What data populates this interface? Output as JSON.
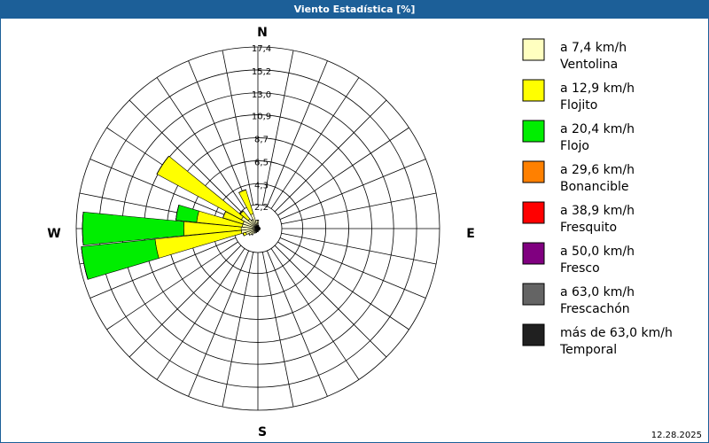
{
  "chart_data": {
    "type": "windrose",
    "title": "Viento Estadística [%]",
    "date": "12.28.2025",
    "compass_labels": [
      "N",
      "E",
      "S",
      "W"
    ],
    "x": [
      0,
      11.25,
      22.5,
      33.75,
      45,
      56.25,
      67.5,
      78.75,
      90,
      101.25,
      112.5,
      123.75,
      135,
      146.25,
      157.5,
      168.75,
      180,
      191.25,
      202.5,
      213.75,
      225,
      236.25,
      247.5,
      258.75,
      270,
      281.25,
      292.5,
      303.75,
      315,
      326.25,
      337.5,
      348.75
    ],
    "rlim": [
      0,
      17.4
    ],
    "rticks": [
      {
        "value": 2.2,
        "label": "2,2"
      },
      {
        "value": 4.3,
        "label": "4,3"
      },
      {
        "value": 6.5,
        "label": "6,5"
      },
      {
        "value": 8.7,
        "label": "8,7"
      },
      {
        "value": 10.9,
        "label": "10,9"
      },
      {
        "value": 13.0,
        "label": "13,0"
      },
      {
        "value": 15.2,
        "label": "15,2"
      },
      {
        "value": 17.4,
        "label": "17,4"
      }
    ],
    "series": [
      {
        "name": "a 7,4 km/h",
        "description": "Ventolina",
        "color": "#ffffc0",
        "values": [
          0.8,
          0.3,
          0.2,
          0.2,
          0.2,
          0.2,
          0.2,
          0.2,
          0.2,
          0.2,
          0.2,
          0.2,
          0.2,
          0.2,
          0.2,
          0.2,
          0.3,
          0.3,
          0.4,
          0.5,
          0.8,
          1.0,
          1.2,
          1.6,
          1.6,
          1.5,
          1.5,
          1.8,
          1.2,
          1.0,
          1.5,
          0.8
        ]
      },
      {
        "name": "a 12,9 km/h",
        "description": "Flojito",
        "color": "#ffff00",
        "values": [
          0,
          0,
          0,
          0,
          0,
          0,
          0,
          0,
          0,
          0,
          0,
          0,
          0,
          0,
          0,
          0,
          0,
          0,
          0,
          0,
          0,
          0,
          0.3,
          8.3,
          5.5,
          4.4,
          2.0,
          9.2,
          1.0,
          0,
          2.4,
          0
        ]
      },
      {
        "name": "a 20,4 km/h",
        "description": "Flojo",
        "color": "#00ee00",
        "values": [
          0,
          0,
          0,
          0,
          0,
          0,
          0,
          0,
          0,
          0,
          0,
          0,
          0,
          0,
          0,
          0,
          0,
          0,
          0,
          0,
          0,
          0,
          0,
          7.1,
          9.7,
          2.0,
          0,
          0,
          0,
          0,
          0,
          0
        ]
      },
      {
        "name": "a 29,6 km/h",
        "description": "Bonancible",
        "color": "#ff8000",
        "values": [
          0,
          0,
          0,
          0,
          0,
          0,
          0,
          0,
          0,
          0,
          0,
          0,
          0,
          0,
          0,
          0,
          0,
          0,
          0,
          0,
          0,
          0,
          0,
          0,
          0,
          0,
          0,
          0,
          0,
          0,
          0,
          0
        ]
      },
      {
        "name": "a 38,9 km/h",
        "description": "Fresquito",
        "color": "#ff0000",
        "values": [
          0,
          0,
          0,
          0,
          0,
          0,
          0,
          0,
          0,
          0,
          0,
          0,
          0,
          0,
          0,
          0,
          0,
          0,
          0,
          0,
          0,
          0,
          0,
          0,
          0,
          0,
          0,
          0,
          0,
          0,
          0,
          0
        ]
      },
      {
        "name": "a 50,0 km/h",
        "description": "Fresco",
        "color": "#800080",
        "values": [
          0,
          0,
          0,
          0,
          0,
          0,
          0,
          0,
          0,
          0,
          0,
          0,
          0,
          0,
          0,
          0,
          0,
          0,
          0,
          0,
          0,
          0,
          0,
          0,
          0,
          0,
          0,
          0,
          0,
          0,
          0,
          0
        ]
      },
      {
        "name": "a 63,0 km/h",
        "description": "Frescachón",
        "color": "#646464",
        "values": [
          0,
          0,
          0,
          0,
          0,
          0,
          0,
          0,
          0,
          0,
          0,
          0,
          0,
          0,
          0,
          0,
          0,
          0,
          0,
          0,
          0,
          0,
          0,
          0,
          0,
          0,
          0,
          0,
          0,
          0,
          0,
          0
        ]
      },
      {
        "name": "más de 63,0 km/h",
        "description": "Temporal",
        "color": "#202020",
        "values": [
          0,
          0,
          0,
          0,
          0,
          0,
          0,
          0,
          0,
          0,
          0,
          0,
          0,
          0,
          0,
          0,
          0,
          0,
          0,
          0,
          0,
          0,
          0,
          0,
          0,
          0,
          0,
          0,
          0,
          0,
          0,
          0
        ]
      }
    ]
  }
}
